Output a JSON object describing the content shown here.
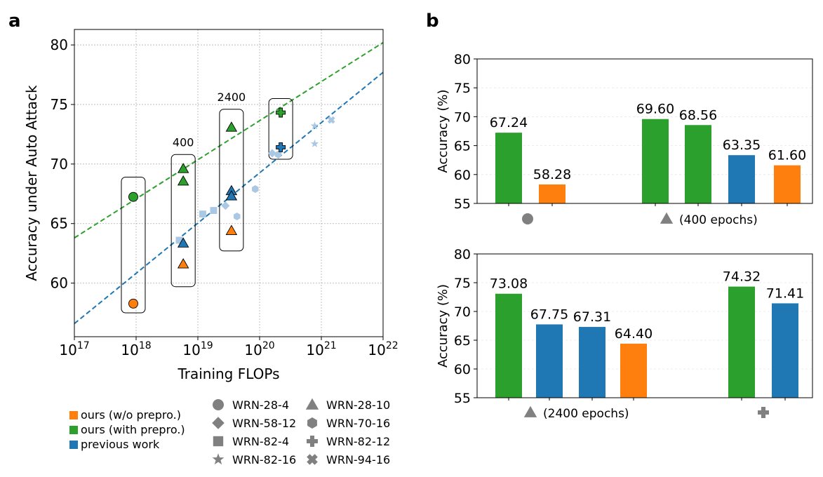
{
  "panel_labels": {
    "a": "a",
    "b": "b"
  },
  "colors": {
    "orange": "#ff7f0e",
    "green": "#2ca02c",
    "blue": "#1f77b4",
    "light_blue": "#aac8e4",
    "grey": "#808080"
  },
  "legend": {
    "colors": [
      {
        "label": "ours (w/o prepro.)",
        "color": "#ff7f0e"
      },
      {
        "label": "ours (with prepro.)",
        "color": "#2ca02c"
      },
      {
        "label": "previous work",
        "color": "#1f77b4"
      }
    ],
    "markers": [
      {
        "label": "WRN-28-4",
        "icon": "circle-icon"
      },
      {
        "label": "WRN-28-10",
        "icon": "triangle-icon"
      },
      {
        "label": "WRN-58-12",
        "icon": "diamond-icon"
      },
      {
        "label": "WRN-70-16",
        "icon": "hexagon-icon"
      },
      {
        "label": "WRN-82-4",
        "icon": "square-icon"
      },
      {
        "label": "WRN-82-12",
        "icon": "plus-icon"
      },
      {
        "label": "WRN-82-16",
        "icon": "star-icon"
      },
      {
        "label": "WRN-94-16",
        "icon": "x-icon"
      }
    ]
  },
  "chart_data": [
    {
      "type": "scatter",
      "panel": "a",
      "xlabel": "Training FLOPs",
      "ylabel": "Accuracy under Auto Attack",
      "xscale": "log",
      "xlim": [
        1e+17,
        1e+22
      ],
      "ylim": [
        55.5,
        81.3
      ],
      "xticks": [
        {
          "exp": 17,
          "label": "10",
          "sup": "17"
        },
        {
          "exp": 18,
          "label": "10",
          "sup": "18"
        },
        {
          "exp": 19,
          "label": "10",
          "sup": "19"
        },
        {
          "exp": 20,
          "label": "10",
          "sup": "20"
        },
        {
          "exp": 21,
          "label": "10",
          "sup": "21"
        },
        {
          "exp": 22,
          "label": "10",
          "sup": "22"
        }
      ],
      "yticks": [
        60,
        65,
        70,
        75,
        80
      ],
      "grid": true,
      "trendlines": [
        {
          "color": "#2ca02c",
          "x": [
            1e+17,
            1e+22
          ],
          "y": [
            63.8,
            80.2
          ]
        },
        {
          "color": "#1f77b4",
          "x": [
            1e+17,
            1e+22
          ],
          "y": [
            56.6,
            77.7
          ]
        }
      ],
      "group_labels": [
        {
          "text": "400",
          "x": 5.8e+18,
          "y": 71.5
        },
        {
          "text": "2400",
          "x": 3.5e+19,
          "y": 75.3
        }
      ],
      "groups": [
        {
          "x": 9e+17,
          "ymin": 57.5,
          "ymax": 68.9
        },
        {
          "x": 5.8e+18,
          "ymin": 59.7,
          "ymax": 70.8
        },
        {
          "x": 3.5e+19,
          "ymin": 62.7,
          "ymax": 74.6
        },
        {
          "x": 2.2e+20,
          "ymin": 70.4,
          "ymax": 75.5
        }
      ],
      "points": [
        {
          "x": 9e+17,
          "y": 67.24,
          "marker": "circle",
          "color": "#2ca02c"
        },
        {
          "x": 9e+17,
          "y": 58.28,
          "marker": "circle",
          "color": "#ff7f0e"
        },
        {
          "x": 5.8e+18,
          "y": 69.6,
          "marker": "triangle",
          "color": "#2ca02c"
        },
        {
          "x": 5.8e+18,
          "y": 68.56,
          "marker": "triangle",
          "color": "#2ca02c"
        },
        {
          "x": 5.8e+18,
          "y": 63.35,
          "marker": "triangle",
          "color": "#1f77b4"
        },
        {
          "x": 5.8e+18,
          "y": 61.6,
          "marker": "triangle",
          "color": "#ff7f0e"
        },
        {
          "x": 3.5e+19,
          "y": 73.08,
          "marker": "triangle",
          "color": "#2ca02c"
        },
        {
          "x": 3.5e+19,
          "y": 67.75,
          "marker": "triangle",
          "color": "#1f77b4"
        },
        {
          "x": 3.5e+19,
          "y": 67.31,
          "marker": "triangle",
          "color": "#1f77b4"
        },
        {
          "x": 3.5e+19,
          "y": 64.4,
          "marker": "triangle",
          "color": "#ff7f0e"
        },
        {
          "x": 2.2e+20,
          "y": 74.32,
          "marker": "plus",
          "color": "#2ca02c"
        },
        {
          "x": 2.2e+20,
          "y": 71.41,
          "marker": "plus",
          "color": "#1f77b4"
        },
        {
          "x": 5e+18,
          "y": 63.6,
          "marker": "square",
          "color": "#aac8e4"
        },
        {
          "x": 1.2e+19,
          "y": 65.8,
          "marker": "square",
          "color": "#aac8e4"
        },
        {
          "x": 1.8e+19,
          "y": 66.1,
          "marker": "square",
          "color": "#aac8e4"
        },
        {
          "x": 2.8e+19,
          "y": 66.5,
          "marker": "diamond",
          "color": "#aac8e4"
        },
        {
          "x": 1.6e+20,
          "y": 70.9,
          "marker": "diamond",
          "color": "#aac8e4"
        },
        {
          "x": 4.3e+19,
          "y": 65.6,
          "marker": "hexagon",
          "color": "#aac8e4"
        },
        {
          "x": 8.5e+19,
          "y": 67.9,
          "marker": "hexagon",
          "color": "#aac8e4"
        },
        {
          "x": 2e+20,
          "y": 70.8,
          "marker": "hexagon",
          "color": "#aac8e4"
        },
        {
          "x": 7.8e+20,
          "y": 73.2,
          "marker": "star",
          "color": "#aac8e4"
        },
        {
          "x": 7.8e+20,
          "y": 71.7,
          "marker": "star",
          "color": "#aac8e4"
        },
        {
          "x": 1.45e+21,
          "y": 73.7,
          "marker": "x",
          "color": "#aac8e4"
        }
      ]
    },
    {
      "type": "bar",
      "panel": "b-top",
      "ylabel": "Accuracy (%)",
      "ylim": [
        55,
        80
      ],
      "yticks": [
        55,
        60,
        65,
        70,
        75,
        80
      ],
      "categories": [
        {
          "icon": "circle",
          "label": ""
        },
        {
          "icon": "triangle",
          "label": "(400 epochs)"
        }
      ],
      "bars": [
        {
          "group": 0,
          "value": 67.24,
          "label": "67.24",
          "color": "#2ca02c"
        },
        {
          "group": 0,
          "value": 58.28,
          "label": "58.28",
          "color": "#ff7f0e"
        },
        {
          "group": 1,
          "value": 69.6,
          "label": "69.60",
          "color": "#2ca02c"
        },
        {
          "group": 1,
          "value": 68.56,
          "label": "68.56",
          "color": "#2ca02c"
        },
        {
          "group": 1,
          "value": 63.35,
          "label": "63.35",
          "color": "#1f77b4"
        },
        {
          "group": 1,
          "value": 61.6,
          "label": "61.60",
          "color": "#ff7f0e"
        }
      ]
    },
    {
      "type": "bar",
      "panel": "b-bottom",
      "ylabel": "Accuracy (%)",
      "ylim": [
        55,
        80
      ],
      "yticks": [
        55,
        60,
        65,
        70,
        75,
        80
      ],
      "categories": [
        {
          "icon": "triangle",
          "label": "(2400 epochs)"
        },
        {
          "icon": "plus",
          "label": ""
        }
      ],
      "bars": [
        {
          "group": 0,
          "value": 73.08,
          "label": "73.08",
          "color": "#2ca02c"
        },
        {
          "group": 0,
          "value": 67.75,
          "label": "67.75",
          "color": "#1f77b4"
        },
        {
          "group": 0,
          "value": 67.31,
          "label": "67.31",
          "color": "#1f77b4"
        },
        {
          "group": 0,
          "value": 64.4,
          "label": "64.40",
          "color": "#ff7f0e"
        },
        {
          "group": 1,
          "value": 74.32,
          "label": "74.32",
          "color": "#2ca02c"
        },
        {
          "group": 1,
          "value": 71.41,
          "label": "71.41",
          "color": "#1f77b4"
        }
      ]
    }
  ]
}
